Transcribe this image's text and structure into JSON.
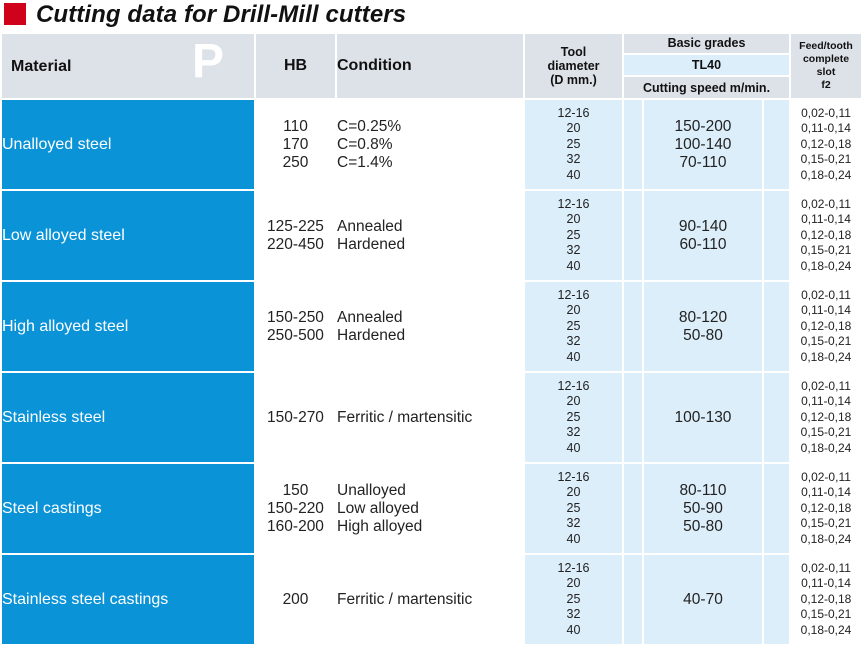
{
  "title": "Cutting data for Drill-Mill cutters",
  "header": {
    "material": "Material",
    "group_letter": "P",
    "hb": "HB",
    "condition": "Condition",
    "tool_diameter": [
      "Tool",
      "diameter",
      "(D mm.)"
    ],
    "basic_grades": "Basic grades",
    "grade": "TL40",
    "cutting_speed": "Cutting speed m/min.",
    "feed": [
      "Feed/tooth",
      "complete",
      "slot",
      "f2"
    ]
  },
  "rows": [
    {
      "material": "Unalloyed steel",
      "hb": [
        "110",
        "170",
        "250"
      ],
      "condition": [
        "C=0.25%",
        "C=0.8%",
        "C=1.4%"
      ],
      "diameters": [
        "12-16",
        "20",
        "25",
        "32",
        "40"
      ],
      "speed": [
        "150-200",
        "100-140",
        "70-110"
      ],
      "feed": [
        "0,02-0,11",
        "0,11-0,14",
        "0,12-0,18",
        "0,15-0,21",
        "0,18-0,24"
      ]
    },
    {
      "material": "Low alloyed steel",
      "hb": [
        "125-225",
        "220-450"
      ],
      "condition": [
        "Annealed",
        "Hardened"
      ],
      "diameters": [
        "12-16",
        "20",
        "25",
        "32",
        "40"
      ],
      "speed": [
        "90-140",
        "60-110"
      ],
      "feed": [
        "0,02-0,11",
        "0,11-0,14",
        "0,12-0,18",
        "0,15-0,21",
        "0,18-0,24"
      ]
    },
    {
      "material": "High alloyed steel",
      "hb": [
        "150-250",
        "250-500"
      ],
      "condition": [
        "Annealed",
        "Hardened"
      ],
      "diameters": [
        "12-16",
        "20",
        "25",
        "32",
        "40"
      ],
      "speed": [
        "80-120",
        "50-80"
      ],
      "feed": [
        "0,02-0,11",
        "0,11-0,14",
        "0,12-0,18",
        "0,15-0,21",
        "0,18-0,24"
      ]
    },
    {
      "material": "Stainless steel",
      "hb": [
        "150-270"
      ],
      "condition": [
        "Ferritic / martensitic"
      ],
      "diameters": [
        "12-16",
        "20",
        "25",
        "32",
        "40"
      ],
      "speed": [
        "100-130"
      ],
      "feed": [
        "0,02-0,11",
        "0,11-0,14",
        "0,12-0,18",
        "0,15-0,21",
        "0,18-0,24"
      ]
    },
    {
      "material": "Steel castings",
      "hb": [
        "150",
        "150-220",
        "160-200"
      ],
      "condition": [
        "Unalloyed",
        "Low alloyed",
        "High alloyed"
      ],
      "diameters": [
        "12-16",
        "20",
        "25",
        "32",
        "40"
      ],
      "speed": [
        "80-110",
        "50-90",
        "50-80"
      ],
      "feed": [
        "0,02-0,11",
        "0,11-0,14",
        "0,12-0,18",
        "0,15-0,21",
        "0,18-0,24"
      ]
    },
    {
      "material": "Stainless steel castings",
      "hb": [
        "200"
      ],
      "condition": [
        "Ferritic / martensitic"
      ],
      "diameters": [
        "12-16",
        "20",
        "25",
        "32",
        "40"
      ],
      "speed": [
        "40-70"
      ],
      "feed": [
        "0,02-0,11",
        "0,11-0,14",
        "0,12-0,18",
        "0,15-0,21",
        "0,18-0,24"
      ]
    }
  ]
}
